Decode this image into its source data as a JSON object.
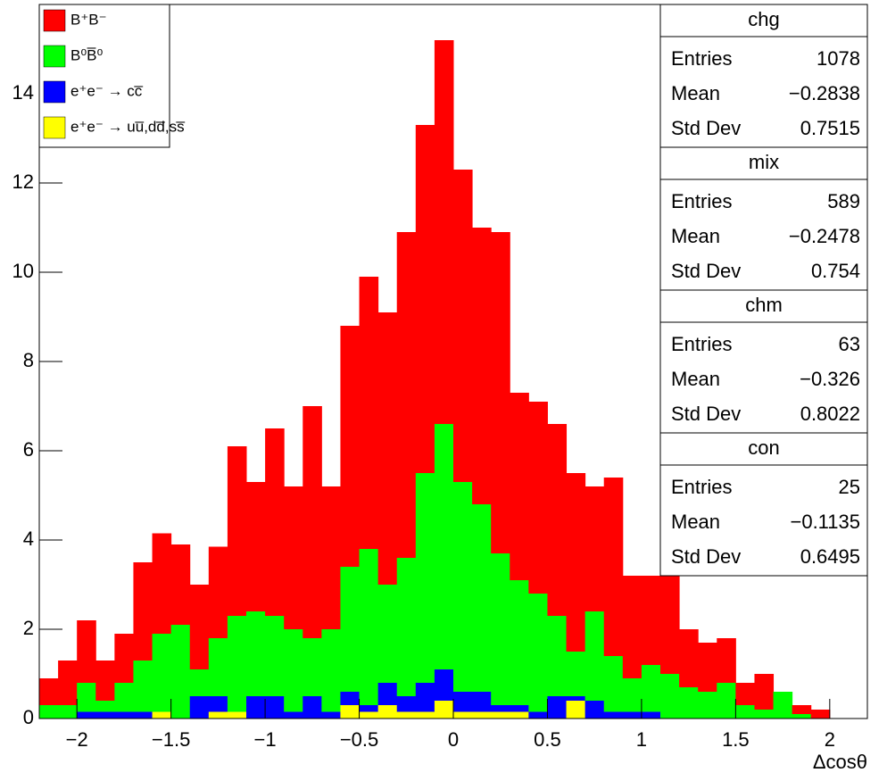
{
  "chart_data": {
    "type": "stacked_histogram",
    "x_label": "Δcosθ",
    "bins": [
      -2.2,
      -2.1,
      -2,
      -1.9,
      -1.8,
      -1.7,
      -1.6,
      -1.5,
      -1.4,
      -1.3,
      -1.2,
      -1.1,
      -1,
      -0.9,
      -0.8,
      -0.7,
      -0.6,
      -0.5,
      -0.4,
      -0.3,
      -0.2,
      -0.1,
      0,
      0.1,
      0.2,
      0.3,
      0.4,
      0.5,
      0.6,
      0.7,
      0.8,
      0.9,
      1,
      1.1,
      1.2,
      1.3,
      1.4,
      1.5,
      1.6,
      1.7,
      1.8,
      1.9,
      2,
      2.1,
      2.2
    ],
    "series": [
      {
        "name": "B⁺B⁻",
        "color": "#ff0000",
        "values": [
          0.6,
          1.0,
          1.4,
          0.9,
          1.1,
          2.2,
          2.25,
          1.8,
          1.9,
          2.05,
          3.8,
          2.9,
          4.2,
          3.2,
          5.2,
          3.2,
          5.4,
          6.1,
          6.1,
          7.3,
          7.8,
          8.6,
          7.0,
          6.2,
          7.2,
          4.2,
          4.3,
          4.3,
          4.0,
          2.8,
          4.0,
          2.3,
          2.0,
          2.3,
          1.3,
          1.1,
          1.0,
          0.5,
          0.8,
          0,
          0.2,
          0.2,
          0,
          0
        ]
      },
      {
        "name": "B⁰B̅⁰",
        "color": "#00ff00",
        "values": [
          0.3,
          0.3,
          0.65,
          0.25,
          0.65,
          1.15,
          1.75,
          2.1,
          0.6,
          1.3,
          2.15,
          1.9,
          1.8,
          1.85,
          1.3,
          1.85,
          2.8,
          3.5,
          2.2,
          3.1,
          4.7,
          5.5,
          4.7,
          4.2,
          3.4,
          2.8,
          2.65,
          1.8,
          1.0,
          2.0,
          1.25,
          0.75,
          1.05,
          1.0,
          0.7,
          0.6,
          0.8,
          0.3,
          0.2,
          0.6,
          0.1,
          0,
          0,
          0
        ]
      },
      {
        "name": "e⁺e⁻ → cc̅",
        "color": "#0000ff",
        "values": [
          0,
          0,
          0.15,
          0.15,
          0.15,
          0.15,
          0,
          0,
          0.5,
          0.35,
          0,
          0.5,
          0.5,
          0.15,
          0.5,
          0.15,
          0.3,
          0.15,
          0.5,
          0.35,
          0.65,
          0.7,
          0.45,
          0.45,
          0.15,
          0.15,
          0.15,
          0.5,
          0.1,
          0.4,
          0.15,
          0.15,
          0.15,
          0,
          0,
          0,
          0,
          0,
          0,
          0,
          0,
          0,
          0,
          0
        ]
      },
      {
        "name": "e⁺e⁻ → uu̅,dd̅,ss̅",
        "color": "#ffff00",
        "values": [
          0,
          0,
          0,
          0,
          0,
          0,
          0.15,
          0,
          0,
          0.15,
          0.15,
          0,
          0,
          0,
          0,
          0,
          0.3,
          0.15,
          0.3,
          0.15,
          0.15,
          0.4,
          0.15,
          0.15,
          0.15,
          0.15,
          0,
          0,
          0.4,
          0,
          0,
          0,
          0,
          0,
          0,
          0,
          0,
          0,
          0,
          0,
          0,
          0,
          0,
          0
        ]
      }
    ],
    "xlim": [
      -2.2,
      2.2
    ],
    "ylim": [
      0,
      16
    ],
    "xticks": [
      {
        "value": -2,
        "label": "−2"
      },
      {
        "value": -1.5,
        "label": "−1.5"
      },
      {
        "value": -1,
        "label": "−1"
      },
      {
        "value": -0.5,
        "label": "−0.5"
      },
      0,
      0.5,
      1,
      1.5,
      2
    ],
    "yticks": [
      0,
      2,
      4,
      6,
      8,
      10,
      12,
      14
    ],
    "stats": [
      {
        "title": "chg",
        "rows": [
          [
            "Entries",
            "1078"
          ],
          [
            "Mean",
            "−0.2838"
          ],
          [
            "Std Dev",
            "0.7515"
          ]
        ]
      },
      {
        "title": "mix",
        "rows": [
          [
            "Entries",
            "589"
          ],
          [
            "Mean",
            "−0.2478"
          ],
          [
            "Std Dev",
            "0.754"
          ]
        ]
      },
      {
        "title": "chm",
        "rows": [
          [
            "Entries",
            "63"
          ],
          [
            "Mean",
            "−0.326"
          ],
          [
            "Std Dev",
            "0.8022"
          ]
        ]
      },
      {
        "title": "con",
        "rows": [
          [
            "Entries",
            "25"
          ],
          [
            "Mean",
            "−0.1135"
          ],
          [
            "Std Dev",
            "0.6495"
          ]
        ]
      }
    ]
  }
}
